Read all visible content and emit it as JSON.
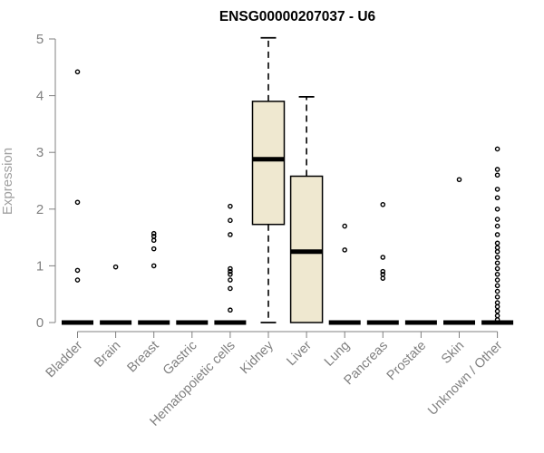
{
  "chart_data": {
    "type": "boxplot",
    "title": "ENSG00000207037 - U6",
    "xlabel": "",
    "ylabel": "Expression",
    "ylim": [
      0,
      5
    ],
    "yticks": [
      0,
      1,
      2,
      3,
      4,
      5
    ],
    "grid": false,
    "box_fill": "#efe8d0",
    "categories": [
      "Bladder",
      "Brain",
      "Breast",
      "Gastric",
      "Hematopoietic cells",
      "Kidney",
      "Liver",
      "Lung",
      "Pancreas",
      "Prostate",
      "Skin",
      "Unknown / Other"
    ],
    "boxes": [
      {
        "category": "Bladder",
        "q1": 0,
        "median": 0,
        "q3": 0,
        "whisker_low": 0,
        "whisker_high": 0,
        "outliers": [
          0.75,
          0.92,
          2.12,
          4.42
        ]
      },
      {
        "category": "Brain",
        "q1": 0,
        "median": 0,
        "q3": 0,
        "whisker_low": 0,
        "whisker_high": 0,
        "outliers": [
          0.98
        ]
      },
      {
        "category": "Breast",
        "q1": 0,
        "median": 0,
        "q3": 0,
        "whisker_low": 0,
        "whisker_high": 0,
        "outliers": [
          1.0,
          1.3,
          1.45,
          1.52,
          1.57
        ]
      },
      {
        "category": "Gastric",
        "q1": 0,
        "median": 0,
        "q3": 0,
        "whisker_low": 0,
        "whisker_high": 0,
        "outliers": []
      },
      {
        "category": "Hematopoietic cells",
        "q1": 0,
        "median": 0,
        "q3": 0,
        "whisker_low": 0,
        "whisker_high": 0,
        "outliers": [
          0.22,
          0.6,
          0.75,
          0.85,
          0.9,
          0.95,
          1.55,
          1.8,
          2.05
        ]
      },
      {
        "category": "Kidney",
        "q1": 1.73,
        "median": 2.88,
        "q3": 3.9,
        "whisker_low": 0,
        "whisker_high": 5.02,
        "outliers": []
      },
      {
        "category": "Liver",
        "q1": 0,
        "median": 1.25,
        "q3": 2.58,
        "whisker_low": 0,
        "whisker_high": 3.98,
        "outliers": []
      },
      {
        "category": "Lung",
        "q1": 0,
        "median": 0,
        "q3": 0,
        "whisker_low": 0,
        "whisker_high": 0,
        "outliers": [
          1.28,
          1.7
        ]
      },
      {
        "category": "Pancreas",
        "q1": 0,
        "median": 0,
        "q3": 0,
        "whisker_low": 0,
        "whisker_high": 0,
        "outliers": [
          0.78,
          0.85,
          0.9,
          1.15,
          2.08
        ]
      },
      {
        "category": "Prostate",
        "q1": 0,
        "median": 0,
        "q3": 0,
        "whisker_low": 0,
        "whisker_high": 0,
        "outliers": []
      },
      {
        "category": "Skin",
        "q1": 0,
        "median": 0,
        "q3": 0,
        "whisker_low": 0,
        "whisker_high": 0,
        "outliers": [
          2.52
        ]
      },
      {
        "category": "Unknown / Other",
        "q1": 0,
        "median": 0,
        "q3": 0,
        "whisker_low": 0,
        "whisker_high": 0,
        "outliers": [
          0.05,
          0.12,
          0.2,
          0.28,
          0.35,
          0.45,
          0.55,
          0.65,
          0.75,
          0.85,
          0.95,
          1.05,
          1.15,
          1.25,
          1.32,
          1.4,
          1.55,
          1.7,
          1.82,
          2.0,
          2.2,
          2.35,
          2.6,
          2.7,
          3.06
        ]
      }
    ]
  }
}
